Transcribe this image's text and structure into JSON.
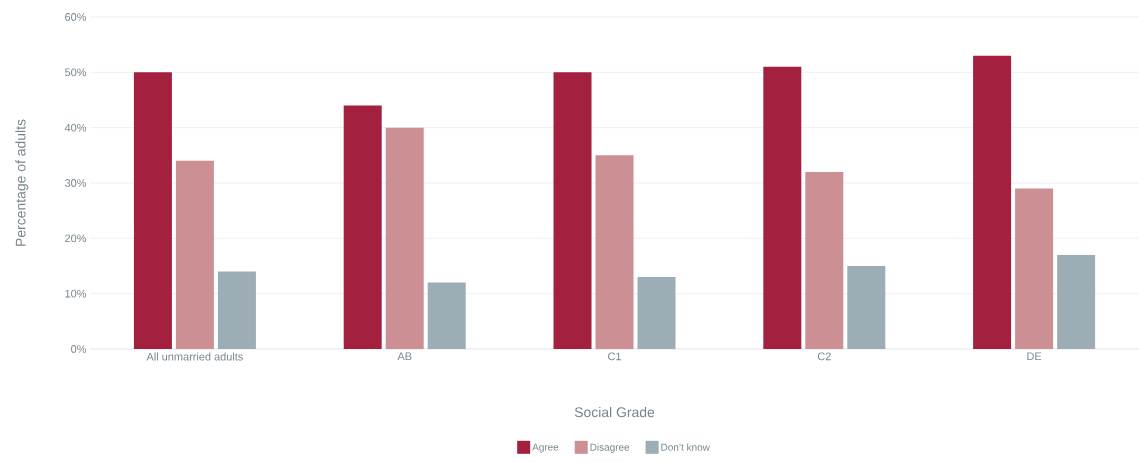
{
  "chart_data": {
    "type": "bar",
    "xlabel": "Social Grade",
    "ylabel": "Percentage of adults",
    "categories": [
      "All unmarried adults",
      "AB",
      "C1",
      "C2",
      "DE"
    ],
    "series": [
      {
        "name": "Agree",
        "color": "#a3213f",
        "values": [
          50,
          44,
          50,
          51,
          53
        ]
      },
      {
        "name": "Disagree",
        "color": "#cc8f94",
        "values": [
          34,
          40,
          35,
          32,
          29
        ]
      },
      {
        "name": "Don’t know",
        "color": "#9dadb5",
        "values": [
          14,
          12,
          13,
          15,
          17
        ]
      }
    ],
    "ylim": [
      0,
      60
    ],
    "yticks": [
      {
        "value": 0,
        "label": "0%"
      },
      {
        "value": 10,
        "label": "10%"
      },
      {
        "value": 20,
        "label": "20%"
      },
      {
        "value": 30,
        "label": "30%"
      },
      {
        "value": 40,
        "label": "40%"
      },
      {
        "value": 50,
        "label": "50%"
      },
      {
        "value": 60,
        "label": "60%"
      }
    ],
    "grid": "y",
    "legend": "bottom"
  }
}
